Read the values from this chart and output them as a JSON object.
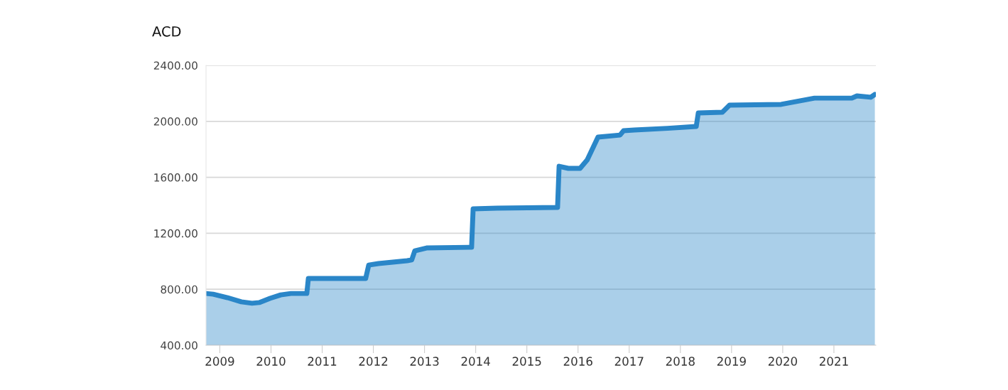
{
  "chart_data": {
    "type": "area",
    "ylabel": "ACD",
    "x": [
      2008.73,
      2008.87,
      2009.15,
      2009.42,
      2009.63,
      2009.77,
      2009.98,
      2010.19,
      2010.39,
      2010.7,
      2010.73,
      2011.78,
      2011.85,
      2011.91,
      2012.1,
      2012.66,
      2012.75,
      2012.81,
      2013.04,
      2013.87,
      2013.92,
      2013.95,
      2014.42,
      2015.57,
      2015.6,
      2015.63,
      2015.81,
      2016.04,
      2016.18,
      2016.39,
      2016.82,
      2016.89,
      2017.1,
      2017.75,
      2018.31,
      2018.35,
      2018.82,
      2018.96,
      2019.97,
      2020.62,
      2021.35,
      2021.45,
      2021.72,
      2021.8
    ],
    "series": [
      {
        "color": "#2a86c8",
        "values": [
          770,
          765,
          740,
          710,
          700,
          705,
          735,
          760,
          770,
          770,
          877,
          877,
          877,
          973,
          984,
          1004,
          1010,
          1075,
          1095,
          1100,
          1100,
          1375,
          1380,
          1385,
          1385,
          1679,
          1664,
          1664,
          1725,
          1887,
          1902,
          1933,
          1938,
          1950,
          1963,
          2060,
          2065,
          2116,
          2121,
          2166,
          2166,
          2182,
          2172,
          2192
        ]
      }
    ],
    "xlim": [
      2008.73,
      2021.82
    ],
    "xticks": [
      2009,
      2010,
      2011,
      2012,
      2013,
      2014,
      2015,
      2016,
      2017,
      2018,
      2019,
      2020,
      2021
    ],
    "ylim": [
      400,
      2400
    ],
    "yticks": [
      {
        "value": 400,
        "label": "400.00"
      },
      {
        "value": 800,
        "label": "800.00"
      },
      {
        "value": 1200,
        "label": "1200.00"
      },
      {
        "value": 1600,
        "label": "1600.00"
      },
      {
        "value": 2000,
        "label": "2000.00"
      },
      {
        "value": 2400,
        "label": "2400.00"
      }
    ],
    "grid": "y",
    "marker": "none",
    "line_style": "solid"
  }
}
